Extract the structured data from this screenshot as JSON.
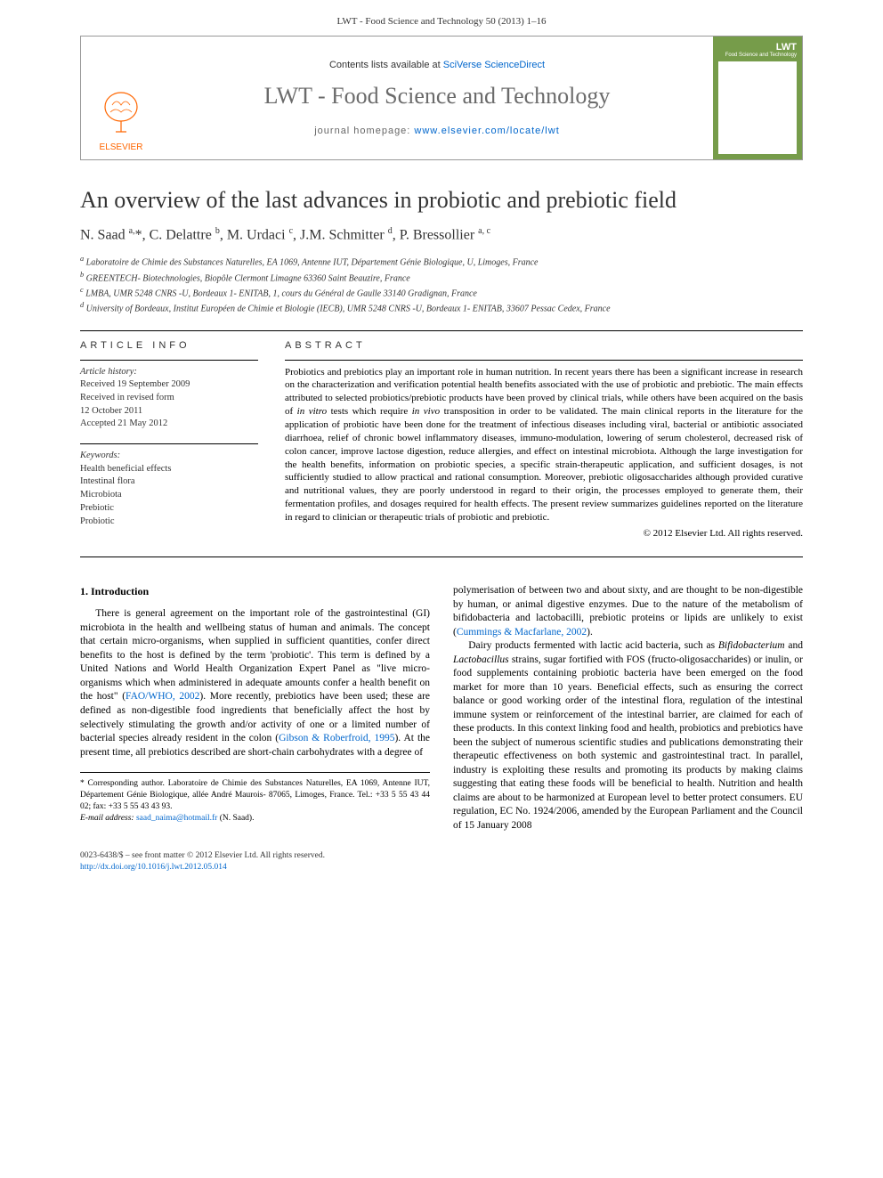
{
  "citation": "LWT - Food Science and Technology 50 (2013) 1–16",
  "banner": {
    "contents_prefix": "Contents lists available at ",
    "contents_link": "SciVerse ScienceDirect",
    "journal_name": "LWT - Food Science and Technology",
    "homepage_prefix": "journal homepage: ",
    "homepage_link": "www.elsevier.com/locate/lwt",
    "publisher": "ELSEVIER",
    "cover_label": "LWT",
    "cover_sub": "Food Science and Technology"
  },
  "article": {
    "title": "An overview of the last advances in probiotic and prebiotic field",
    "authors_html": "N. Saad <sup>a,</sup>*, C. Delattre <sup>b</sup>, M. Urdaci <sup>c</sup>, J.M. Schmitter <sup>d</sup>, P. Bressollier <sup>a, c</sup>",
    "affiliations": [
      "a Laboratoire de Chimie des Substances Naturelles, EA 1069, Antenne IUT, Département Génie Biologique, U, Limoges, France",
      "b GREENTECH- Biotechnologies, Biopôle Clermont Limagne 63360 Saint Beauzire, France",
      "c LMBA, UMR 5248 CNRS -U, Bordeaux 1- ENITAB, 1, cours du Général de Gaulle 33140 Gradignan, France",
      "d University of Bordeaux, Institut Européen de Chimie et Biologie (IECB), UMR 5248 CNRS -U, Bordeaux 1- ENITAB, 33607 Pessac Cedex, France"
    ]
  },
  "info": {
    "heading": "ARTICLE INFO",
    "history_label": "Article history:",
    "history": [
      "Received 19 September 2009",
      "Received in revised form",
      "12 October 2011",
      "Accepted 21 May 2012"
    ],
    "keywords_label": "Keywords:",
    "keywords": [
      "Health beneficial effects",
      "Intestinal flora",
      "Microbiota",
      "Prebiotic",
      "Probiotic"
    ]
  },
  "abstract": {
    "heading": "ABSTRACT",
    "text": "Probiotics and prebiotics play an important role in human nutrition. In recent years there has been a significant increase in research on the characterization and verification potential health benefits associated with the use of probiotic and prebiotic. The main effects attributed to selected probiotics/prebiotic products have been proved by clinical trials, while others have been acquired on the basis of in vitro tests which require in vivo transposition in order to be validated. The main clinical reports in the literature for the application of probiotic have been done for the treatment of infectious diseases including viral, bacterial or antibiotic associated diarrhoea, relief of chronic bowel inflammatory diseases, immuno-modulation, lowering of serum cholesterol, decreased risk of colon cancer, improve lactose digestion, reduce allergies, and effect on intestinal microbiota. Although the large investigation for the health benefits, information on probiotic species, a specific strain-therapeutic application, and sufficient dosages, is not sufficiently studied to allow practical and rational consumption. Moreover, prebiotic oligosaccharides although provided curative and nutritional values, they are poorly understood in regard to their origin, the processes employed to generate them, their fermentation profiles, and dosages required for health effects. The present review summarizes guidelines reported on the literature in regard to clinician or therapeutic trials of probiotic and prebiotic.",
    "copyright": "© 2012 Elsevier Ltd. All rights reserved."
  },
  "body": {
    "section_heading": "1. Introduction",
    "para1_pre": "There is general agreement on the important role of the gastrointestinal (GI) microbiota in the health and wellbeing status of human and animals. The concept that certain micro-organisms, when supplied in sufficient quantities, confer direct benefits to the host is defined by the term 'probiotic'. This term is defined by a United Nations and World Health Organization Expert Panel as \"live micro-organisms which when administered in adequate amounts confer a health benefit on the host\" (",
    "para1_link1": "FAO/WHO, 2002",
    "para1_mid": "). More recently, prebiotics have been used; these are defined as non-digestible food ingredients that beneficially affect the host by selectively stimulating the growth and/or activity of one or a limited number of bacterial species already resident in the colon (",
    "para1_link2": "Gibson & Roberfroid, 1995",
    "para1_post": "). At the present time, all prebiotics described are short-chain carbohydrates with a degree of ",
    "para2_pre": "polymerisation of between two and about sixty, and are thought to be non-digestible by human, or animal digestive enzymes. Due to the nature of the metabolism of bifidobacteria and lactobacilli, prebiotic proteins or lipids are unlikely to exist (",
    "para2_link": "Cummings & Macfarlane, 2002",
    "para2_post": ").",
    "para3": "Dairy products fermented with lactic acid bacteria, such as Bifidobacterium and Lactobacillus strains, sugar fortified with FOS (fructo-oligosaccharides) or inulin, or food supplements containing probiotic bacteria have been emerged on the food market for more than 10 years. Beneficial effects, such as ensuring the correct balance or good working order of the intestinal flora, regulation of the intestinal immune system or reinforcement of the intestinal barrier, are claimed for each of these products. In this context linking food and health, probiotics and prebiotics have been the subject of numerous scientific studies and publications demonstrating their therapeutic effectiveness on both systemic and gastrointestinal tract. In parallel, industry is exploiting these results and promoting its products by making claims suggesting that eating these foods will be beneficial to health. Nutrition and health claims are about to be harmonized at European level to better protect consumers. EU regulation, EC No. 1924/2006, amended by the European Parliament and the Council of 15 January 2008"
  },
  "footnote": {
    "corresponding": "* Corresponding author. Laboratoire de Chimie des Substances Naturelles, EA 1069, Antenne IUT, Département Génie Biologique, allée André Maurois- 87065, Limoges, France. Tel.: +33 5 55 43 44 02; fax: +33 5 55 43 43 93.",
    "email_label": "E-mail address: ",
    "email": "saad_naima@hotmail.fr",
    "email_name": " (N. Saad)."
  },
  "footer": {
    "line1": "0023-6438/$ – see front matter © 2012 Elsevier Ltd. All rights reserved.",
    "doi": "http://dx.doi.org/10.1016/j.lwt.2012.05.014"
  },
  "colors": {
    "link": "#0066cc",
    "elsevier_orange": "#ff6600",
    "cover_green": "#769c4a",
    "text_gray": "#333333",
    "journal_gray": "#6b6b6b"
  }
}
